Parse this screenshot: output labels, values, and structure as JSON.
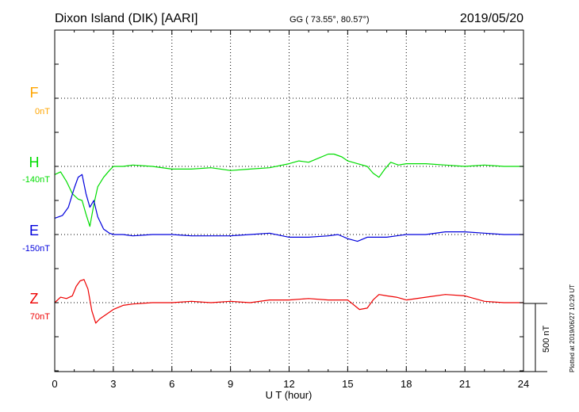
{
  "header": {
    "station": "Dixon Island (DIK)  [AARI]",
    "coords": "GG ( 73.55°,  80.57°)",
    "date": "2019/05/20"
  },
  "footer": {
    "plotted": "Plotted at 2019/06/27 10:29 UT"
  },
  "colors": {
    "F": "#ffa500",
    "H": "#00dd00",
    "E": "#0000dd",
    "Z": "#ee0000",
    "axis": "#000000",
    "grid": "#000000"
  },
  "chart_data": {
    "type": "line",
    "title": "Dixon Island (DIK)  [AARI]",
    "xlabel": "U T (hour)",
    "xlim": [
      0,
      24
    ],
    "xticks": [
      "0",
      "3",
      "6",
      "9",
      "12",
      "15",
      "18",
      "21",
      "24"
    ],
    "scale_bar": {
      "label": "500 nT",
      "value": 500
    },
    "grid": true,
    "series": [
      {
        "name": "F",
        "baseline_label": "0nT",
        "x": [],
        "values": []
      },
      {
        "name": "H",
        "baseline_label": "-140nT",
        "x": [
          0,
          0.3,
          0.6,
          0.9,
          1.2,
          1.4,
          1.6,
          1.8,
          2.0,
          2.2,
          2.5,
          2.8,
          3.0,
          3.5,
          4,
          5,
          6,
          7,
          8,
          9,
          10,
          11,
          12,
          12.5,
          13,
          13.5,
          14,
          14.3,
          14.7,
          15,
          15.5,
          16,
          16.3,
          16.6,
          16.9,
          17.2,
          17.6,
          18,
          19,
          20,
          21,
          22,
          23,
          24
        ],
        "values": [
          -60,
          -40,
          -110,
          -200,
          -240,
          -250,
          -350,
          -440,
          -280,
          -150,
          -80,
          -30,
          0,
          0,
          10,
          0,
          -20,
          -20,
          -10,
          -30,
          -20,
          -10,
          20,
          40,
          30,
          60,
          90,
          90,
          70,
          40,
          20,
          0,
          -50,
          -80,
          -20,
          30,
          10,
          20,
          20,
          10,
          0,
          10,
          0,
          0
        ]
      },
      {
        "name": "E",
        "baseline_label": "-150nT",
        "x": [
          0,
          0.4,
          0.7,
          1.0,
          1.2,
          1.4,
          1.6,
          1.8,
          2.0,
          2.2,
          2.5,
          2.8,
          3.0,
          3.5,
          4,
          5,
          6,
          7,
          8,
          9,
          10,
          11,
          12,
          13,
          14,
          14.5,
          15,
          15.5,
          16,
          16.5,
          17,
          17.5,
          18,
          19,
          20,
          21,
          22,
          23,
          24
        ],
        "values": [
          120,
          140,
          200,
          340,
          420,
          440,
          300,
          200,
          250,
          130,
          40,
          10,
          0,
          0,
          -10,
          0,
          0,
          -10,
          -10,
          -10,
          0,
          10,
          -20,
          -20,
          -10,
          0,
          -30,
          -50,
          -20,
          -20,
          -20,
          -10,
          0,
          0,
          20,
          20,
          10,
          0,
          0
        ]
      },
      {
        "name": "Z",
        "baseline_label": "70nT",
        "x": [
          0,
          0.3,
          0.6,
          0.9,
          1.1,
          1.3,
          1.5,
          1.7,
          1.9,
          2.1,
          2.3,
          2.6,
          3.0,
          3.5,
          4,
          5,
          6,
          7,
          8,
          9,
          10,
          11,
          12,
          13,
          14,
          15,
          15.6,
          16.0,
          16.3,
          16.6,
          17,
          17.5,
          18,
          19,
          20,
          21,
          22,
          23,
          24
        ],
        "values": [
          0,
          40,
          30,
          50,
          120,
          160,
          170,
          100,
          -60,
          -150,
          -120,
          -90,
          -50,
          -20,
          -10,
          0,
          0,
          10,
          0,
          10,
          0,
          20,
          20,
          30,
          20,
          20,
          -50,
          -40,
          20,
          60,
          50,
          40,
          20,
          40,
          60,
          50,
          10,
          0,
          0
        ]
      }
    ]
  }
}
